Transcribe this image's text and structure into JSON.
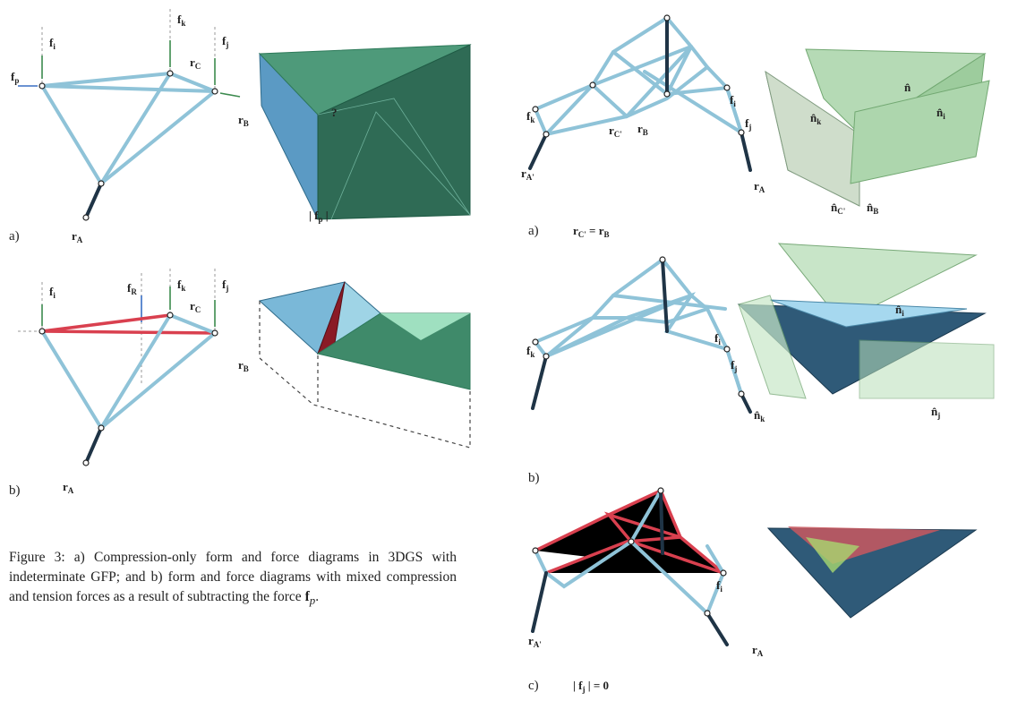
{
  "left": [
    {
      "tag": "a)",
      "labels": [
        {
          "base": "f",
          "sub": "p"
        },
        {
          "base": "f",
          "sub": "i"
        },
        {
          "base": "f",
          "sub": "k"
        },
        {
          "base": "r",
          "sub": "C"
        },
        {
          "base": "f",
          "sub": "j"
        },
        {
          "base": "r",
          "sub": "B"
        },
        {
          "base": "r",
          "sub": "A"
        },
        {
          "base": "?"
        },
        {
          "base": "| f",
          "sub": "p",
          "tail": " |"
        }
      ]
    },
    {
      "tag": "b)",
      "labels": [
        {
          "base": "f",
          "sub": "i"
        },
        {
          "base": "f",
          "sub": "R"
        },
        {
          "base": "f",
          "sub": "k"
        },
        {
          "base": "r",
          "sub": "C"
        },
        {
          "base": "f",
          "sub": "j"
        },
        {
          "base": "r",
          "sub": "B"
        },
        {
          "base": "r",
          "sub": "A"
        }
      ]
    }
  ],
  "right": [
    {
      "tag": "a)",
      "equation": {
        "lhs": "r",
        "lhs_sub": "C'",
        "op": " = ",
        "rhs": "r",
        "rhs_sub": "B"
      },
      "labels": [
        {
          "base": "f",
          "sub": "k"
        },
        {
          "base": "r",
          "sub": "C'"
        },
        {
          "base": "r",
          "sub": "B"
        },
        {
          "base": "f",
          "sub": "i"
        },
        {
          "base": "f",
          "sub": "j"
        },
        {
          "base": "r",
          "sub": "A'"
        },
        {
          "base": "r",
          "sub": "A"
        },
        {
          "base": "n̂",
          "sub": "k"
        },
        {
          "base": "n̂"
        },
        {
          "base": "n̂",
          "sub": "i"
        },
        {
          "base": "n̂",
          "sub": "C'"
        },
        {
          "base": "n̂",
          "sub": "B"
        }
      ]
    },
    {
      "tag": "b)",
      "labels": [
        {
          "base": "f",
          "sub": "k"
        },
        {
          "base": "f",
          "sub": "i"
        },
        {
          "base": "f",
          "sub": "j"
        },
        {
          "base": "n̂",
          "sub": "i"
        },
        {
          "base": "n̂",
          "sub": "k"
        },
        {
          "base": "n̂",
          "sub": "j"
        }
      ]
    },
    {
      "tag": "c)",
      "equation": {
        "lhs": "| f",
        "lhs_sub": "j",
        "op": " | = ",
        "rhs": "0"
      },
      "labels": [
        {
          "base": "f",
          "sub": "i"
        },
        {
          "base": "r",
          "sub": "A'"
        },
        {
          "base": "r",
          "sub": "A"
        }
      ]
    }
  ],
  "caption": {
    "text": "Figure 3: a) Compression-only form and force diagrams in 3DGS with indeterminate GFP; and b) form and force diagrams with mixed compression and tension forces as a result of subtracting the force ",
    "bold": "f",
    "sub": "p",
    "end": "."
  }
}
